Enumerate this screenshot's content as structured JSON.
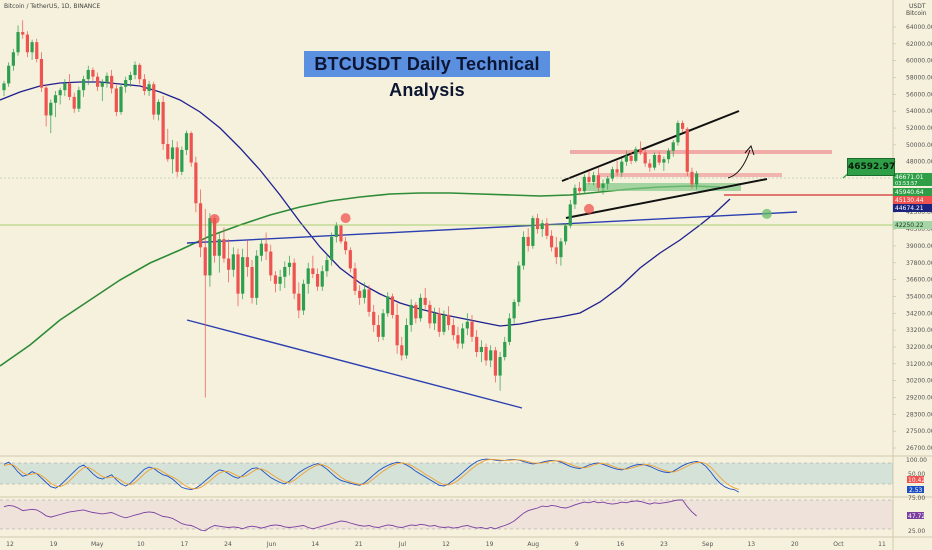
{
  "header": {
    "symbol_line": "Bitcoin / TetherUS, 1D, BINANCE",
    "currency": "USDT",
    "currency_sub": "Bitcoin"
  },
  "annotation": {
    "title": "BTCUSDT Daily Technical Analysis",
    "price_label": "46592.97"
  },
  "chart_data": {
    "type": "candlestick",
    "title": "BTCUSDT Daily Technical Analysis",
    "y_axis": {
      "range": [
        25500,
        65500
      ],
      "ticks": [
        64000,
        62000,
        60000,
        58000,
        56000,
        54000,
        52000,
        50000,
        48000,
        46000,
        44000,
        42500,
        40500,
        39000,
        37800,
        36600,
        35400,
        34200,
        33200,
        32200,
        31200,
        30200,
        29200,
        28300,
        27500,
        26700
      ]
    },
    "x_axis": {
      "ticks": [
        "12",
        "19",
        "May",
        "10",
        "17",
        "24",
        "Jun",
        "14",
        "21",
        "Jul",
        "12",
        "19",
        "Aug",
        "9",
        "16",
        "23",
        "Sep",
        "13",
        "20",
        "Oct",
        "11"
      ]
    },
    "price_labels": [
      {
        "value": "46671.01",
        "sub": "03:53:57",
        "color": "#2e9f47"
      },
      {
        "value": "45940.64",
        "color": "#2e9f47"
      },
      {
        "value": "45130.44",
        "color": "#ef5350"
      },
      {
        "value": "44674.21",
        "color": "#1a237e"
      },
      {
        "value": "42250.22",
        "color": "#a5d6a7"
      }
    ],
    "candles": [
      [
        56500,
        57600,
        55800,
        57300
      ],
      [
        57300,
        59800,
        56900,
        59400
      ],
      [
        59400,
        61400,
        58800,
        61000
      ],
      [
        61000,
        64200,
        60600,
        63400
      ],
      [
        63400,
        64800,
        62600,
        63100
      ],
      [
        63100,
        63500,
        60400,
        61000
      ],
      [
        61000,
        62500,
        60100,
        62200
      ],
      [
        62200,
        62600,
        59800,
        60200
      ],
      [
        60200,
        61000,
        56300,
        56800
      ],
      [
        56800,
        57200,
        52200,
        53500
      ],
      [
        53500,
        55400,
        51400,
        55000
      ],
      [
        55000,
        56400,
        53300,
        55900
      ],
      [
        55900,
        56800,
        54800,
        56500
      ],
      [
        56500,
        57800,
        55800,
        57300
      ],
      [
        57300,
        58400,
        55300,
        55700
      ],
      [
        55700,
        56200,
        53800,
        54300
      ],
      [
        54300,
        56900,
        53900,
        56500
      ],
      [
        56500,
        58200,
        55700,
        57800
      ],
      [
        57800,
        59400,
        57100,
        58900
      ],
      [
        58900,
        59200,
        57600,
        58100
      ],
      [
        58100,
        58600,
        56400,
        56900
      ],
      [
        56900,
        57800,
        55200,
        57400
      ],
      [
        57400,
        58600,
        56800,
        58200
      ],
      [
        58200,
        58900,
        56100,
        56700
      ],
      [
        56700,
        57100,
        53400,
        53900
      ],
      [
        53900,
        57300,
        53600,
        56900
      ],
      [
        56900,
        58100,
        56200,
        57700
      ],
      [
        57700,
        58700,
        56900,
        58300
      ],
      [
        58300,
        59900,
        57800,
        59500
      ],
      [
        59500,
        59700,
        57200,
        57800
      ],
      [
        57800,
        58400,
        55900,
        56400
      ],
      [
        56400,
        57600,
        55800,
        57200
      ],
      [
        57200,
        57500,
        53000,
        53600
      ],
      [
        53600,
        55400,
        52900,
        55100
      ],
      [
        55100,
        55800,
        49400,
        50100
      ],
      [
        50100,
        51900,
        48000,
        48300
      ],
      [
        48300,
        50600,
        46600,
        49700
      ],
      [
        49700,
        50400,
        46200,
        46800
      ],
      [
        46800,
        49800,
        46400,
        49400
      ],
      [
        49400,
        51700,
        48800,
        51400
      ],
      [
        51400,
        51600,
        47400,
        47900
      ],
      [
        47900,
        48600,
        42500,
        43300
      ],
      [
        43300,
        44700,
        38200,
        38900
      ],
      [
        38900,
        42800,
        29200,
        36900
      ],
      [
        36900,
        42400,
        36100,
        41800
      ],
      [
        41800,
        42100,
        37800,
        38300
      ],
      [
        38300,
        40100,
        37100,
        39600
      ],
      [
        39600,
        40700,
        37800,
        38100
      ],
      [
        38100,
        39600,
        36400,
        37300
      ],
      [
        37300,
        38900,
        36800,
        38400
      ],
      [
        38400,
        38800,
        34700,
        35600
      ],
      [
        35600,
        38800,
        35200,
        38200
      ],
      [
        38200,
        39500,
        36800,
        37500
      ],
      [
        37500,
        38000,
        34900,
        35300
      ],
      [
        35300,
        38700,
        34800,
        38300
      ],
      [
        38300,
        39600,
        37900,
        39200
      ],
      [
        39200,
        40200,
        38000,
        38600
      ],
      [
        38600,
        39100,
        36500,
        36900
      ],
      [
        36900,
        37200,
        35700,
        36300
      ],
      [
        36300,
        37300,
        35800,
        36800
      ],
      [
        36800,
        37900,
        36000,
        37500
      ],
      [
        37500,
        38300,
        36900,
        37800
      ],
      [
        37800,
        38100,
        35200,
        35600
      ],
      [
        35600,
        36400,
        33900,
        34400
      ],
      [
        34400,
        36600,
        34100,
        36300
      ],
      [
        36300,
        37800,
        35600,
        37400
      ],
      [
        37400,
        38300,
        36700,
        37000
      ],
      [
        37000,
        37400,
        35800,
        36100
      ],
      [
        36100,
        37600,
        35800,
        37200
      ],
      [
        37200,
        38400,
        36800,
        38000
      ],
      [
        38000,
        40200,
        37600,
        39800
      ],
      [
        39800,
        41300,
        39300,
        40900
      ],
      [
        40900,
        41000,
        39200,
        39400
      ],
      [
        39400,
        39800,
        38400,
        38700
      ],
      [
        38700,
        38900,
        37100,
        37400
      ],
      [
        37400,
        37800,
        35500,
        35800
      ],
      [
        35800,
        36200,
        34800,
        35300
      ],
      [
        35300,
        36400,
        34900,
        35900
      ],
      [
        35900,
        36200,
        34000,
        34300
      ],
      [
        34300,
        34800,
        33100,
        33500
      ],
      [
        33500,
        34100,
        32500,
        32800
      ],
      [
        32800,
        34500,
        32600,
        34200
      ],
      [
        34200,
        35700,
        34000,
        35400
      ],
      [
        35400,
        35600,
        33900,
        34100
      ],
      [
        34100,
        34900,
        31800,
        32300
      ],
      [
        32300,
        32800,
        31400,
        31700
      ],
      [
        31700,
        33900,
        31500,
        33500
      ],
      [
        33500,
        35200,
        33100,
        34800
      ],
      [
        34800,
        35000,
        33600,
        33900
      ],
      [
        33900,
        35600,
        33700,
        35300
      ],
      [
        35300,
        36000,
        34500,
        34800
      ],
      [
        34800,
        35100,
        33300,
        33600
      ],
      [
        33600,
        34600,
        33200,
        34200
      ],
      [
        34200,
        34600,
        32800,
        33100
      ],
      [
        33100,
        34400,
        32900,
        34100
      ],
      [
        34100,
        34700,
        33200,
        33500
      ],
      [
        33500,
        33900,
        32600,
        32900
      ],
      [
        32900,
        33400,
        32100,
        32400
      ],
      [
        32400,
        33600,
        32100,
        33300
      ],
      [
        33300,
        34200,
        32900,
        33700
      ],
      [
        33700,
        34100,
        32500,
        32800
      ],
      [
        32800,
        33200,
        31600,
        31900
      ],
      [
        31900,
        32600,
        31300,
        32200
      ],
      [
        32200,
        32400,
        31100,
        31400
      ],
      [
        31400,
        32300,
        31000,
        32000
      ],
      [
        32000,
        32200,
        30100,
        30500
      ],
      [
        30500,
        31900,
        29600,
        31600
      ],
      [
        31600,
        32800,
        31400,
        32500
      ],
      [
        32500,
        34200,
        32300,
        33900
      ],
      [
        33900,
        35200,
        33600,
        35000
      ],
      [
        35000,
        37900,
        34700,
        37600
      ],
      [
        37600,
        40300,
        37300,
        39800
      ],
      [
        39800,
        40600,
        38600,
        39000
      ],
      [
        39000,
        42100,
        38800,
        41800
      ],
      [
        41800,
        42300,
        40100,
        40500
      ],
      [
        40500,
        41600,
        39800,
        41200
      ],
      [
        41200,
        41800,
        39600,
        39900
      ],
      [
        39900,
        40400,
        38600,
        38900
      ],
      [
        38900,
        39800,
        37700,
        38200
      ],
      [
        38200,
        39700,
        37600,
        39400
      ],
      [
        39400,
        41200,
        39100,
        40900
      ],
      [
        40900,
        43600,
        40600,
        43200
      ],
      [
        43200,
        45300,
        42800,
        44900
      ],
      [
        44900,
        45600,
        44000,
        44500
      ],
      [
        44500,
        46500,
        44200,
        46200
      ],
      [
        46200,
        46900,
        45300,
        45600
      ],
      [
        45600,
        46800,
        45200,
        46400
      ],
      [
        46400,
        47300,
        44500,
        44900
      ],
      [
        44900,
        45900,
        44100,
        45400
      ],
      [
        45400,
        46300,
        44700,
        46000
      ],
      [
        46000,
        47400,
        45700,
        47100
      ],
      [
        47100,
        48100,
        46300,
        46700
      ],
      [
        46700,
        48400,
        46200,
        48000
      ],
      [
        48000,
        49300,
        47500,
        48700
      ],
      [
        48700,
        49100,
        47700,
        48100
      ],
      [
        48100,
        49800,
        47900,
        49500
      ],
      [
        49500,
        50400,
        48800,
        49100
      ],
      [
        49100,
        49500,
        47400,
        47800
      ],
      [
        47800,
        48300,
        46800,
        47300
      ],
      [
        47300,
        49100,
        47000,
        48800
      ],
      [
        48800,
        49200,
        47600,
        47900
      ],
      [
        47900,
        48600,
        46900,
        48300
      ],
      [
        48300,
        49600,
        47800,
        49300
      ],
      [
        49300,
        50600,
        48600,
        50300
      ],
      [
        50300,
        52900,
        49900,
        52600
      ],
      [
        52600,
        52900,
        51500,
        51900
      ],
      [
        51900,
        52100,
        46300,
        46800
      ],
      [
        46800,
        47300,
        44800,
        45300
      ],
      [
        45300,
        46900,
        44700,
        46600
      ]
    ],
    "highlights": [
      {
        "date_index": 45,
        "price": 41700,
        "color": "#ef5350"
      },
      {
        "date_index": 73,
        "price": 41800,
        "color": "#ef5350"
      },
      {
        "date_index": 125,
        "price": 42800,
        "color": "#ef5350"
      },
      {
        "date_index": 163,
        "price": 42300,
        "color": "#66bb6a"
      }
    ],
    "indicators": {
      "stoch_rsi_labels": [
        "100.00",
        "50.00",
        "10.42",
        "2.53"
      ],
      "rsi_labels": [
        "75.00",
        "47.72",
        "25.00"
      ],
      "stoch_k": [
        82,
        88,
        76,
        60,
        48,
        52,
        61,
        55,
        43,
        30,
        18,
        14,
        22,
        35,
        48,
        61,
        74,
        80,
        69,
        55,
        44,
        40,
        46,
        52,
        38,
        26,
        20,
        28,
        41,
        55,
        68,
        74,
        70,
        60,
        52,
        48,
        40,
        28,
        16,
        12,
        10,
        14,
        23,
        35,
        46,
        58,
        66,
        63,
        55,
        47,
        42,
        50,
        61,
        70,
        72,
        66,
        55,
        44,
        37,
        30,
        26,
        34,
        46,
        58,
        67,
        74,
        80,
        84,
        78,
        68,
        56,
        44,
        36,
        32,
        28,
        24,
        22,
        29,
        40,
        52,
        63,
        72,
        79,
        84,
        88,
        86,
        80,
        72,
        62,
        54,
        46,
        38,
        30,
        22,
        20,
        26,
        36,
        47,
        58,
        70,
        81,
        90,
        95,
        97,
        96,
        94,
        92,
        93,
        95,
        96,
        94,
        90,
        86,
        83,
        85,
        88,
        91,
        93,
        92,
        88,
        82,
        76,
        72,
        70,
        74,
        80,
        84,
        86,
        82,
        77,
        72,
        68,
        66,
        70,
        76,
        80,
        82,
        80,
        76,
        70,
        64,
        60,
        58,
        62,
        70,
        78,
        84,
        88,
        90,
        86,
        76,
        60,
        42,
        28,
        18,
        12,
        10,
        2.53
      ],
      "stoch_d": [
        78,
        82,
        80,
        70,
        58,
        52,
        54,
        56,
        50,
        40,
        28,
        20,
        18,
        24,
        35,
        48,
        61,
        72,
        74,
        66,
        56,
        47,
        43,
        46,
        44,
        36,
        27,
        24,
        30,
        42,
        55,
        66,
        71,
        68,
        60,
        52,
        46,
        38,
        28,
        19,
        13,
        12,
        16,
        24,
        35,
        47,
        57,
        62,
        61,
        55,
        48,
        46,
        51,
        60,
        68,
        69,
        64,
        55,
        46,
        38,
        31,
        30,
        36,
        46,
        57,
        66,
        74,
        80,
        81,
        76,
        67,
        56,
        45,
        37,
        32,
        28,
        25,
        25,
        31,
        41,
        52,
        62,
        71,
        79,
        84,
        86,
        84,
        79,
        71,
        63,
        54,
        46,
        38,
        30,
        24,
        23,
        28,
        36,
        47,
        58,
        70,
        80,
        88,
        94,
        96,
        96,
        94,
        93,
        93,
        95,
        95,
        93,
        90,
        86,
        85,
        86,
        88,
        91,
        92,
        91,
        87,
        82,
        77,
        73,
        72,
        75,
        80,
        84,
        84,
        82,
        77,
        72,
        69,
        68,
        71,
        75,
        79,
        81,
        80,
        76,
        70,
        65,
        61,
        60,
        64,
        70,
        77,
        83,
        87,
        88,
        84,
        74,
        60,
        45,
        32,
        22,
        15,
        10.42
      ],
      "rsi": [
        62,
        64,
        63,
        60,
        56,
        57,
        58,
        57,
        53,
        48,
        46,
        48,
        50,
        52,
        54,
        55,
        56,
        57,
        55,
        53,
        52,
        51,
        52,
        53,
        50,
        47,
        45,
        47,
        49,
        51,
        53,
        54,
        53,
        50,
        47,
        46,
        44,
        40,
        36,
        34,
        33,
        30,
        26,
        25,
        30,
        33,
        32,
        31,
        30,
        31,
        30,
        28,
        31,
        32,
        31,
        29,
        31,
        33,
        34,
        33,
        31,
        30,
        31,
        32,
        33,
        30,
        28,
        30,
        32,
        34,
        36,
        38,
        40,
        39,
        37,
        35,
        33,
        32,
        33,
        31,
        30,
        32,
        34,
        33,
        31,
        30,
        32,
        34,
        33,
        35,
        34,
        32,
        33,
        31,
        30,
        31,
        29,
        30,
        32,
        33,
        31,
        29,
        30,
        28,
        30,
        28,
        31,
        33,
        36,
        40,
        46,
        52,
        56,
        58,
        60,
        63,
        62,
        64,
        63,
        61,
        60,
        62,
        65,
        67,
        69,
        68,
        70,
        68,
        69,
        67,
        66,
        67,
        69,
        68,
        70,
        71,
        70,
        68,
        66,
        68,
        67,
        68,
        69,
        71,
        74,
        73,
        62,
        54,
        47.72
      ]
    }
  }
}
